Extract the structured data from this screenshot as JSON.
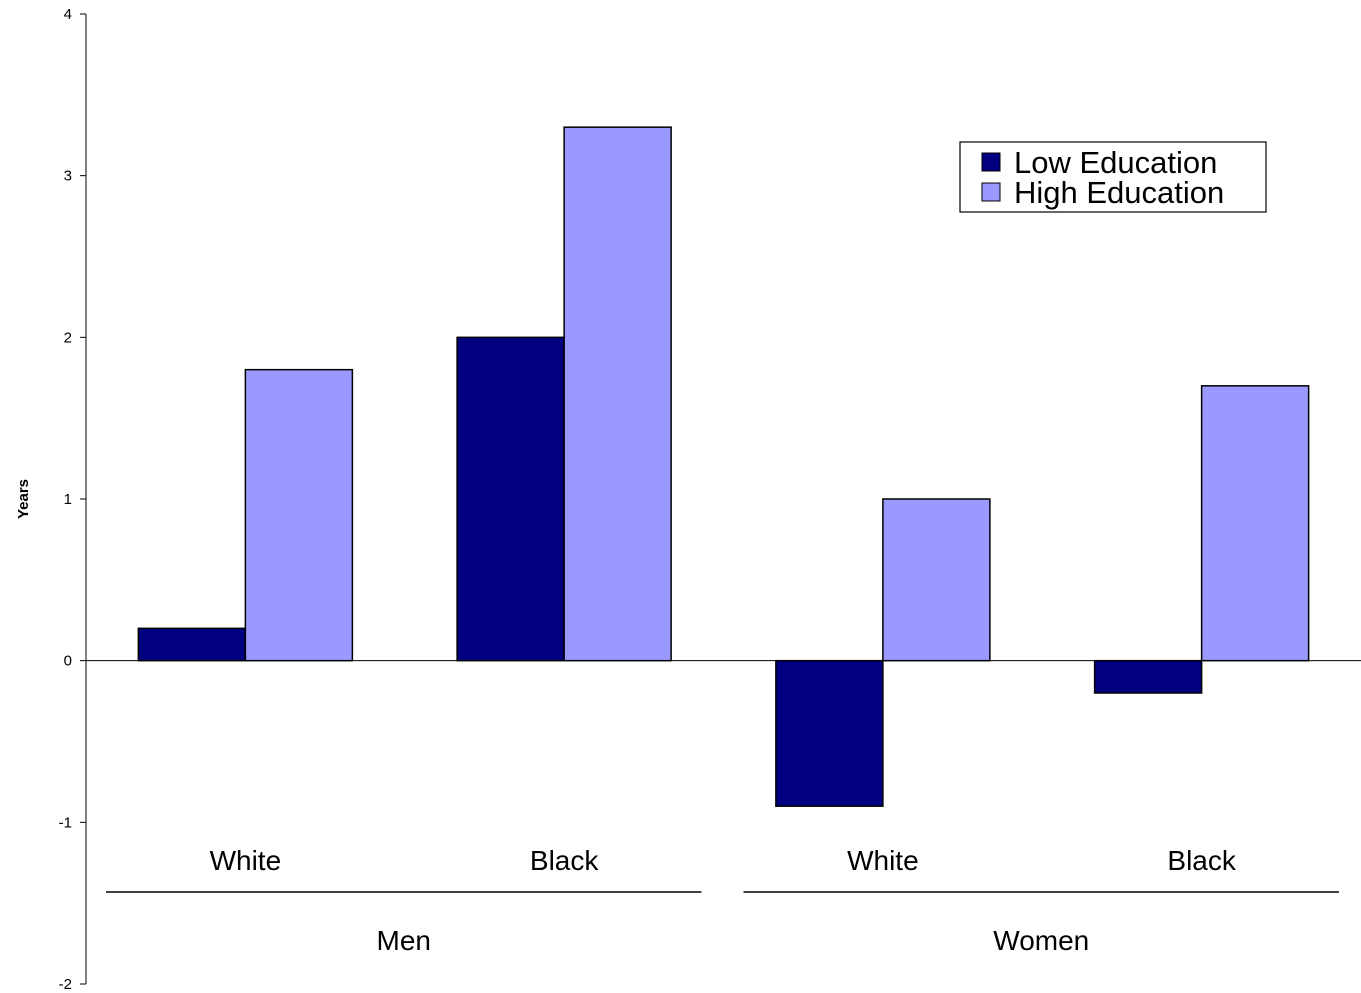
{
  "chart_data": {
    "type": "bar",
    "title": "",
    "xlabel": "",
    "ylabel": "Years",
    "ylim": [
      -2,
      4
    ],
    "yticks": [
      -2,
      -1,
      0,
      1,
      2,
      3,
      4
    ],
    "grid": false,
    "legend_position": "top-right",
    "categories": [
      "White",
      "Black",
      "White",
      "Black"
    ],
    "groups": [
      {
        "label": "Men",
        "categories": [
          "White",
          "Black"
        ]
      },
      {
        "label": "Women",
        "categories": [
          "White",
          "Black"
        ]
      }
    ],
    "series": [
      {
        "name": "Low Education",
        "color": "#000080",
        "values": [
          0.2,
          2.0,
          -0.9,
          -0.2
        ]
      },
      {
        "name": "High Education",
        "color": "#9999FF",
        "values": [
          1.8,
          3.3,
          1.0,
          1.7
        ]
      }
    ]
  }
}
